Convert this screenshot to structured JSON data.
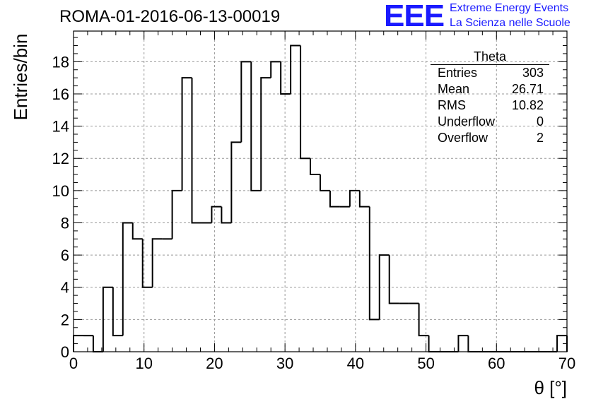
{
  "page": {
    "title": "ROMA-01-2016-06-13-00019",
    "logo_text": "EEE",
    "logo_line1": "Extreme Energy Events",
    "logo_line2": "La Scienza nelle Scuole",
    "logo_color": "#1a1aff"
  },
  "stats": {
    "title": "Theta",
    "rows": [
      {
        "label": "Entries",
        "value": "303"
      },
      {
        "label": "Mean",
        "value": "26.71"
      },
      {
        "label": "RMS",
        "value": "10.82"
      },
      {
        "label": "Underflow",
        "value": "0"
      },
      {
        "label": "Overflow",
        "value": "2"
      }
    ]
  },
  "chart_data": {
    "type": "bar",
    "title": "ROMA-01-2016-06-13-00019",
    "xlabel": "θ [°]",
    "ylabel": "Entries/bin",
    "xlim": [
      0,
      70
    ],
    "ylim": [
      0,
      19.9
    ],
    "bin_width": 1.4,
    "grid": true,
    "x_ticks": [
      0,
      10,
      20,
      30,
      40,
      50,
      60,
      70
    ],
    "y_ticks": [
      0,
      2,
      4,
      6,
      8,
      10,
      12,
      14,
      16,
      18
    ],
    "values": [
      1,
      1,
      0,
      4,
      1,
      8,
      7,
      4,
      7,
      7,
      10,
      17,
      8,
      8,
      9,
      8,
      13,
      18,
      10,
      17,
      18,
      16,
      19,
      12,
      11,
      10,
      9,
      9,
      10,
      9,
      2,
      6,
      3,
      3,
      3,
      1,
      0,
      0,
      0,
      1,
      0,
      0,
      0,
      0,
      0,
      0,
      0,
      0,
      0,
      1
    ]
  }
}
